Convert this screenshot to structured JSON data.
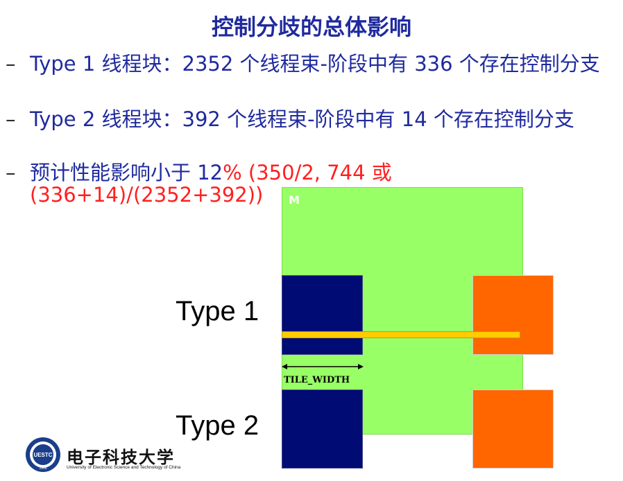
{
  "slide": {
    "title": "控制分歧的总体影响",
    "bullets": [
      {
        "dash": "–",
        "text": "Type 1 线程块：2352 个线程束-阶段中有 336 个存在控制分支"
      },
      {
        "dash": "–",
        "text": "Type 2 线程块：392 个线程束-阶段中有 14 个存在控制分支"
      },
      {
        "dash": "–",
        "text_blue": "预计性能影响小于 12",
        "text_red": "% (350/2, 744 或 (336+14)/(2352+392))"
      }
    ]
  },
  "diagram": {
    "m_label": "M",
    "type1_label": "Type 1",
    "type2_label": "Type 2",
    "tile_width_label": "TILE_WIDTH",
    "colors": {
      "m_area": "#99ff66",
      "tile_navy": "#000b73",
      "tile_orange": "#ff6600",
      "bar": "#ffcc00"
    }
  },
  "logo": {
    "name_cn": "电子科技大学",
    "name_en": "University of Electronic Science and Technology of China",
    "seal_text": "UESTC",
    "year": "1956"
  }
}
